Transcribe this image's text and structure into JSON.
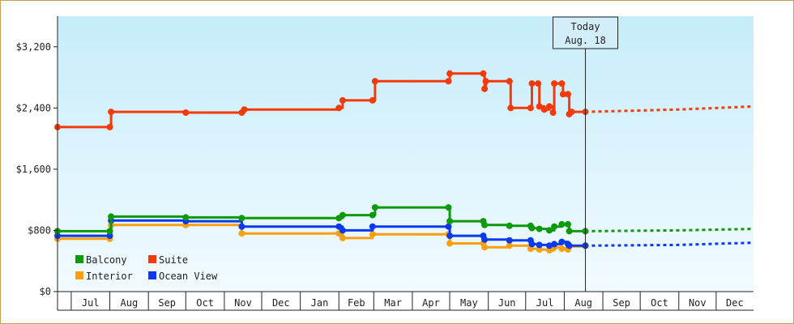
{
  "chart_data": {
    "type": "line",
    "title": "",
    "xlabel": "",
    "ylabel": "",
    "ylim": [
      0,
      3600
    ],
    "y_ticks": [
      "$0",
      "$800",
      "$1,600",
      "$2,400",
      "$3,200"
    ],
    "x_ticks": [
      "Jul",
      "Aug",
      "Sep",
      "Oct",
      "Nov",
      "Dec",
      "Jan",
      "Feb",
      "Mar",
      "Apr",
      "May",
      "Jun",
      "Jul",
      "Aug",
      "Sep",
      "Oct",
      "Nov",
      "Dec"
    ],
    "x_range": [
      "2024-06-20",
      "2025-12-31"
    ],
    "grid": false,
    "step": true,
    "legend_position": "bottom-left",
    "today": {
      "line1": "Today",
      "line2": "Aug. 18",
      "date": "2025-08-18"
    },
    "colors": {
      "Balcony": "#0a9a0a",
      "Suite": "#f43a0a",
      "Interior": "#f8a010",
      "Ocean View": "#0a3af0"
    },
    "series": [
      {
        "name": "Suite",
        "points": [
          [
            "2024-06-20",
            2150
          ],
          [
            "2024-08-01",
            2150
          ],
          [
            "2024-08-02",
            2350
          ],
          [
            "2024-10-01",
            2340
          ],
          [
            "2024-11-15",
            2340
          ],
          [
            "2024-11-17",
            2380
          ],
          [
            "2025-02-01",
            2400
          ],
          [
            "2025-02-04",
            2500
          ],
          [
            "2025-02-28",
            2500
          ],
          [
            "2025-03-02",
            2750
          ],
          [
            "2025-04-30",
            2750
          ],
          [
            "2025-05-01",
            2850
          ],
          [
            "2025-05-28",
            2850
          ],
          [
            "2025-05-29",
            2650
          ],
          [
            "2025-05-30",
            2750
          ],
          [
            "2025-06-18",
            2750
          ],
          [
            "2025-06-19",
            2400
          ],
          [
            "2025-07-05",
            2400
          ],
          [
            "2025-07-06",
            2720
          ],
          [
            "2025-07-11",
            2720
          ],
          [
            "2025-07-12",
            2420
          ],
          [
            "2025-07-16",
            2380
          ],
          [
            "2025-07-20",
            2420
          ],
          [
            "2025-07-23",
            2340
          ],
          [
            "2025-07-24",
            2720
          ],
          [
            "2025-07-30",
            2720
          ],
          [
            "2025-07-31",
            2580
          ],
          [
            "2025-08-04",
            2580
          ],
          [
            "2025-08-05",
            2320
          ],
          [
            "2025-08-07",
            2350
          ],
          [
            "2025-08-18",
            2350
          ]
        ],
        "projection": [
          [
            "2025-08-18",
            2350
          ],
          [
            "2025-11-01",
            2380
          ],
          [
            "2025-12-31",
            2420
          ]
        ]
      },
      {
        "name": "Balcony",
        "points": [
          [
            "2024-06-20",
            790
          ],
          [
            "2024-08-01",
            790
          ],
          [
            "2024-08-02",
            980
          ],
          [
            "2024-10-01",
            970
          ],
          [
            "2024-11-15",
            960
          ],
          [
            "2025-02-01",
            960
          ],
          [
            "2025-02-04",
            1000
          ],
          [
            "2025-02-28",
            1000
          ],
          [
            "2025-03-02",
            1100
          ],
          [
            "2025-04-30",
            1100
          ],
          [
            "2025-05-01",
            920
          ],
          [
            "2025-05-28",
            920
          ],
          [
            "2025-05-29",
            870
          ],
          [
            "2025-06-18",
            860
          ],
          [
            "2025-07-05",
            860
          ],
          [
            "2025-07-06",
            830
          ],
          [
            "2025-07-12",
            820
          ],
          [
            "2025-07-20",
            800
          ],
          [
            "2025-07-24",
            850
          ],
          [
            "2025-07-30",
            880
          ],
          [
            "2025-08-04",
            880
          ],
          [
            "2025-08-05",
            790
          ],
          [
            "2025-08-18",
            790
          ]
        ],
        "projection": [
          [
            "2025-08-18",
            790
          ],
          [
            "2025-11-01",
            800
          ],
          [
            "2025-12-31",
            820
          ]
        ]
      },
      {
        "name": "Ocean View",
        "points": [
          [
            "2024-06-20",
            730
          ],
          [
            "2024-08-01",
            730
          ],
          [
            "2024-08-02",
            930
          ],
          [
            "2024-10-01",
            920
          ],
          [
            "2024-11-15",
            850
          ],
          [
            "2025-02-01",
            850
          ],
          [
            "2025-02-04",
            800
          ],
          [
            "2025-02-28",
            850
          ],
          [
            "2025-04-30",
            850
          ],
          [
            "2025-05-01",
            730
          ],
          [
            "2025-05-28",
            730
          ],
          [
            "2025-05-29",
            680
          ],
          [
            "2025-06-18",
            670
          ],
          [
            "2025-07-05",
            670
          ],
          [
            "2025-07-06",
            620
          ],
          [
            "2025-07-12",
            610
          ],
          [
            "2025-07-20",
            600
          ],
          [
            "2025-07-24",
            620
          ],
          [
            "2025-07-30",
            650
          ],
          [
            "2025-08-04",
            620
          ],
          [
            "2025-08-05",
            600
          ],
          [
            "2025-08-18",
            600
          ]
        ],
        "projection": [
          [
            "2025-08-18",
            600
          ],
          [
            "2025-11-01",
            610
          ],
          [
            "2025-12-31",
            640
          ]
        ]
      },
      {
        "name": "Interior",
        "points": [
          [
            "2024-06-20",
            690
          ],
          [
            "2024-08-01",
            690
          ],
          [
            "2024-08-02",
            870
          ],
          [
            "2024-10-01",
            870
          ],
          [
            "2024-11-15",
            760
          ],
          [
            "2025-02-01",
            760
          ],
          [
            "2025-02-04",
            700
          ],
          [
            "2025-02-28",
            750
          ],
          [
            "2025-04-30",
            750
          ],
          [
            "2025-05-01",
            630
          ],
          [
            "2025-05-28",
            630
          ],
          [
            "2025-05-29",
            580
          ],
          [
            "2025-06-18",
            600
          ],
          [
            "2025-07-05",
            560
          ],
          [
            "2025-07-12",
            550
          ],
          [
            "2025-07-20",
            540
          ],
          [
            "2025-07-24",
            580
          ],
          [
            "2025-07-30",
            560
          ],
          [
            "2025-08-04",
            550
          ],
          [
            "2025-08-05",
            590
          ],
          [
            "2025-08-18",
            600
          ]
        ],
        "projection": []
      }
    ],
    "legend": [
      "Balcony",
      "Suite",
      "Interior",
      "Ocean View"
    ]
  }
}
